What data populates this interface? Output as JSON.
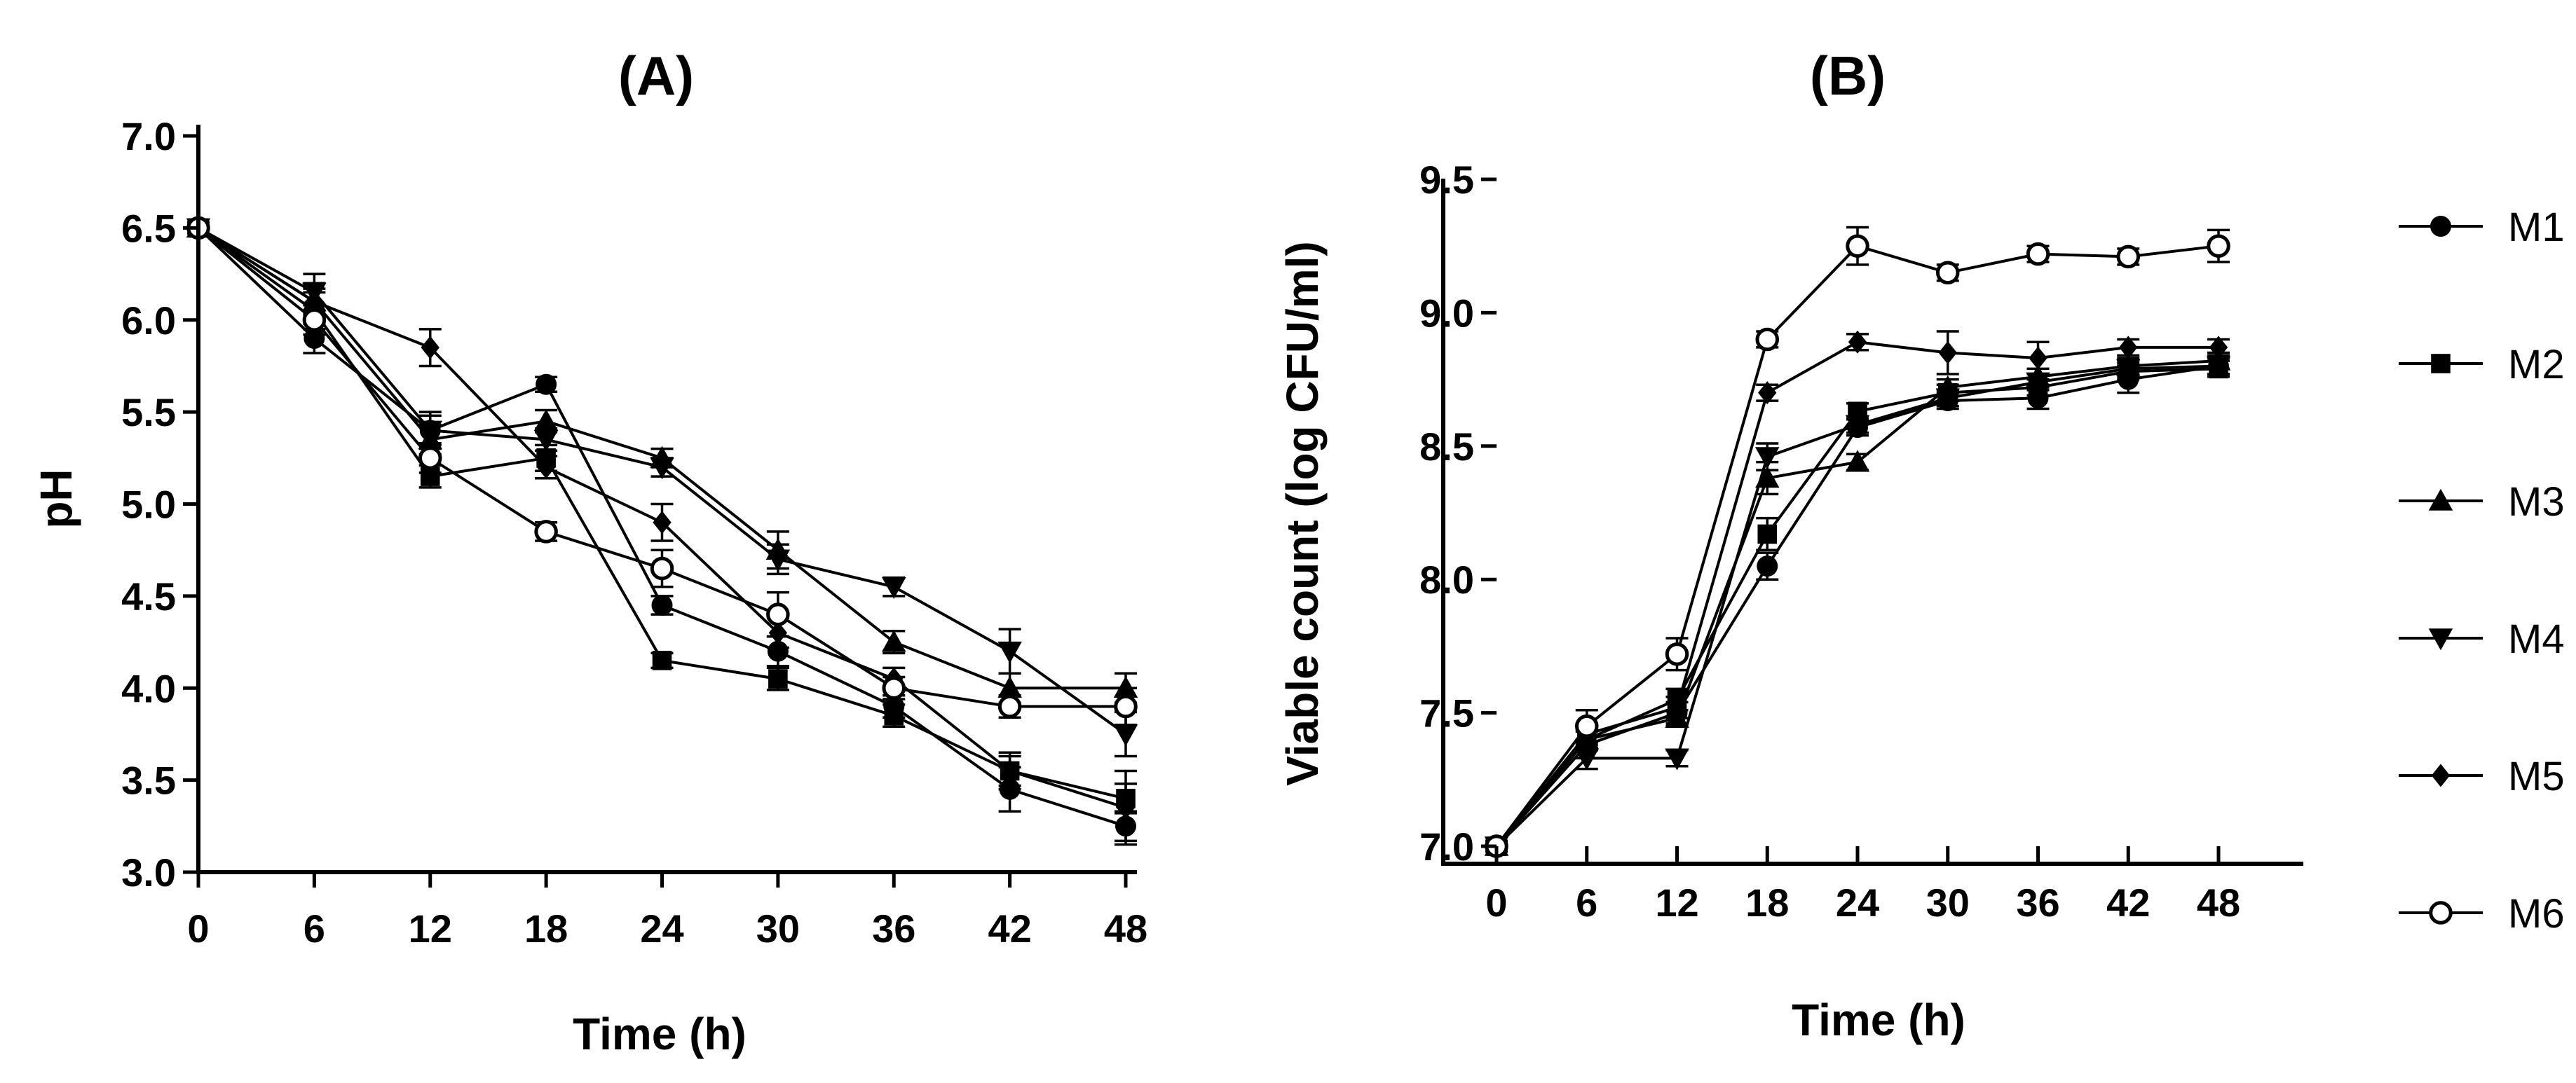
{
  "chart_data": [
    {
      "id": "A",
      "type": "line",
      "title": "(A)",
      "xlabel": "Time (h)",
      "ylabel": "pH",
      "x": [
        0,
        6,
        12,
        18,
        24,
        30,
        36,
        42,
        48
      ],
      "xticks": [
        "0",
        "6",
        "12",
        "18",
        "24",
        "30",
        "36",
        "42",
        "48"
      ],
      "yticks": [
        "3.0",
        "3.5",
        "4.0",
        "4.5",
        "5.0",
        "5.5",
        "6.0",
        "6.5",
        "7.0"
      ],
      "xlim": [
        0,
        48
      ],
      "ylim": [
        3.0,
        7.0
      ],
      "series": [
        {
          "name": "M1",
          "values": [
            6.5,
            5.9,
            5.4,
            5.65,
            4.45,
            4.2,
            3.9,
            3.45,
            3.25
          ],
          "errors": [
            0.03,
            0.08,
            0.1,
            0.04,
            0.05,
            0.08,
            0.06,
            0.12,
            0.08
          ]
        },
        {
          "name": "M2",
          "values": [
            6.5,
            6.05,
            5.15,
            5.25,
            4.15,
            4.05,
            3.85,
            3.55,
            3.4
          ],
          "errors": [
            0.03,
            0.1,
            0.06,
            0.07,
            0.04,
            0.06,
            0.06,
            0.1,
            0.08
          ]
        },
        {
          "name": "M3",
          "values": [
            6.5,
            6.1,
            5.35,
            5.45,
            5.25,
            4.75,
            4.25,
            4.0,
            4.0
          ],
          "errors": [
            0.03,
            0.07,
            0.08,
            0.06,
            0.05,
            0.1,
            0.06,
            0.08,
            0.08
          ]
        },
        {
          "name": "M4",
          "values": [
            6.5,
            6.15,
            5.4,
            5.35,
            5.2,
            4.7,
            4.55,
            4.2,
            3.75
          ],
          "errors": [
            0.03,
            0.1,
            0.08,
            0.06,
            0.05,
            0.08,
            0.05,
            0.12,
            0.12
          ]
        },
        {
          "name": "M5",
          "values": [
            6.5,
            6.1,
            5.85,
            5.2,
            4.9,
            4.3,
            4.05,
            3.55,
            3.35
          ],
          "errors": [
            0.03,
            0.1,
            0.1,
            0.06,
            0.1,
            0.08,
            0.06,
            0.08,
            0.2
          ]
        },
        {
          "name": "M6",
          "values": [
            6.5,
            6.0,
            5.25,
            4.85,
            4.65,
            4.4,
            4.0,
            3.9,
            3.9
          ],
          "errors": [
            0.03,
            0.08,
            0.08,
            0.05,
            0.1,
            0.12,
            0.06,
            0.06,
            0.1
          ]
        }
      ]
    },
    {
      "id": "B",
      "type": "line",
      "title": "(B)",
      "xlabel": "Time (h)",
      "ylabel": "Viable count (log CFU/ml)",
      "x": [
        0,
        6,
        12,
        18,
        24,
        30,
        36,
        42,
        48
      ],
      "xticks": [
        "0",
        "6",
        "12",
        "18",
        "24",
        "30",
        "36",
        "42",
        "48"
      ],
      "yticks": [
        "7.0",
        "7.5",
        "8.0",
        "8.5",
        "9.0",
        "9.5"
      ],
      "xlim": [
        0,
        48
      ],
      "ylim": [
        7.0,
        9.5
      ],
      "legend": {
        "position": "right",
        "entries": [
          "M1",
          "M2",
          "M3",
          "M4",
          "M5",
          "M6"
        ]
      },
      "series": [
        {
          "name": "M1",
          "values": [
            7.0,
            7.38,
            7.5,
            8.05,
            8.57,
            8.67,
            8.68,
            8.75,
            8.8
          ],
          "errors": [
            0.02,
            0.05,
            0.04,
            0.05,
            0.03,
            0.03,
            0.04,
            0.05,
            0.03
          ]
        },
        {
          "name": "M2",
          "values": [
            7.0,
            7.4,
            7.55,
            8.17,
            8.63,
            8.7,
            8.72,
            8.78,
            8.79
          ],
          "errors": [
            0.02,
            0.04,
            0.04,
            0.06,
            0.03,
            0.03,
            0.03,
            0.03,
            0.03
          ]
        },
        {
          "name": "M3",
          "values": [
            7.0,
            7.4,
            7.48,
            8.38,
            8.44,
            8.72,
            8.76,
            8.8,
            8.82
          ],
          "errors": [
            0.02,
            0.04,
            0.03,
            0.06,
            0.03,
            0.03,
            0.03,
            0.03,
            0.03
          ]
        },
        {
          "name": "M4",
          "values": [
            7.0,
            7.33,
            7.33,
            8.46,
            8.58,
            8.68,
            8.74,
            8.79,
            8.8
          ],
          "errors": [
            0.02,
            0.04,
            0.03,
            0.05,
            0.03,
            0.03,
            0.03,
            0.03,
            0.03
          ]
        },
        {
          "name": "M5",
          "values": [
            7.0,
            7.42,
            7.52,
            8.7,
            8.89,
            8.85,
            8.83,
            8.87,
            8.87
          ],
          "errors": [
            0.02,
            0.04,
            0.04,
            0.03,
            0.03,
            0.08,
            0.06,
            0.03,
            0.03
          ]
        },
        {
          "name": "M6",
          "values": [
            7.0,
            7.45,
            7.72,
            8.9,
            9.25,
            9.15,
            9.22,
            9.21,
            9.25
          ],
          "errors": [
            0.02,
            0.06,
            0.06,
            0.03,
            0.07,
            0.03,
            0.03,
            0.03,
            0.06
          ]
        }
      ]
    }
  ],
  "legend_items": [
    "M1",
    "M2",
    "M3",
    "M4",
    "M5",
    "M6"
  ],
  "markers": {
    "M1": "filled-circle",
    "M2": "filled-square",
    "M3": "filled-triangle-up",
    "M4": "filled-triangle-down",
    "M5": "filled-diamond",
    "M6": "open-circle"
  },
  "colors": {
    "ink": "#000000",
    "background": "#ffffff"
  }
}
